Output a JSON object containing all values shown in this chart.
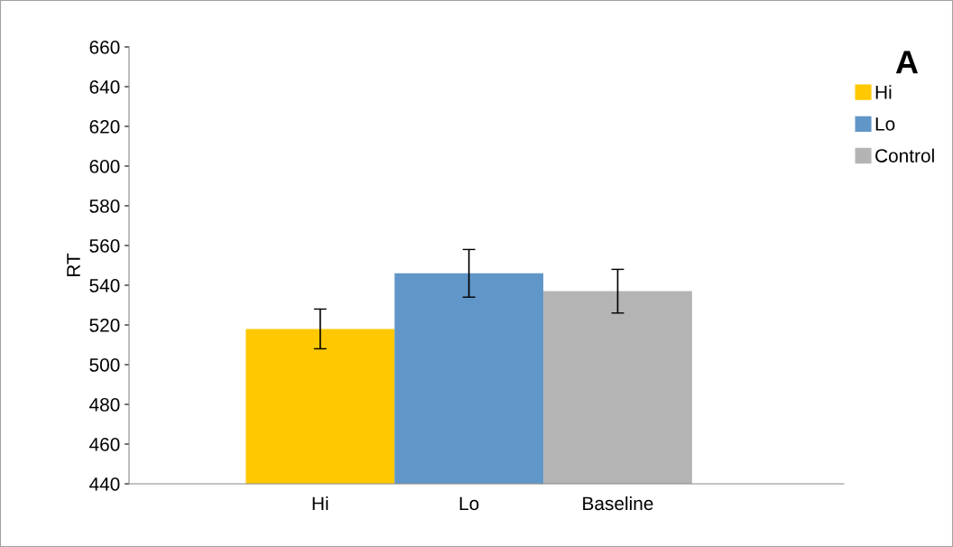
{
  "chart_data": {
    "type": "bar",
    "title": "A",
    "ylabel": "RT",
    "categories": [
      "Hi",
      "Lo",
      "Baseline"
    ],
    "series": [
      {
        "name": "Hi",
        "color": "#ffc800",
        "values": [
          518,
          null,
          null
        ],
        "errors": [
          10,
          null,
          null
        ]
      },
      {
        "name": "Lo",
        "color": "#6096c8",
        "values": [
          null,
          546,
          null
        ],
        "errors": [
          null,
          12,
          null
        ]
      },
      {
        "name": "Control",
        "color": "#b4b4b4",
        "values": [
          null,
          null,
          537
        ],
        "errors": [
          null,
          null,
          11
        ]
      }
    ],
    "ylim": [
      440,
      660
    ],
    "yticks": [
      440,
      460,
      480,
      500,
      520,
      540,
      560,
      580,
      600,
      620,
      640,
      660
    ],
    "grid": false,
    "legend": "right"
  }
}
